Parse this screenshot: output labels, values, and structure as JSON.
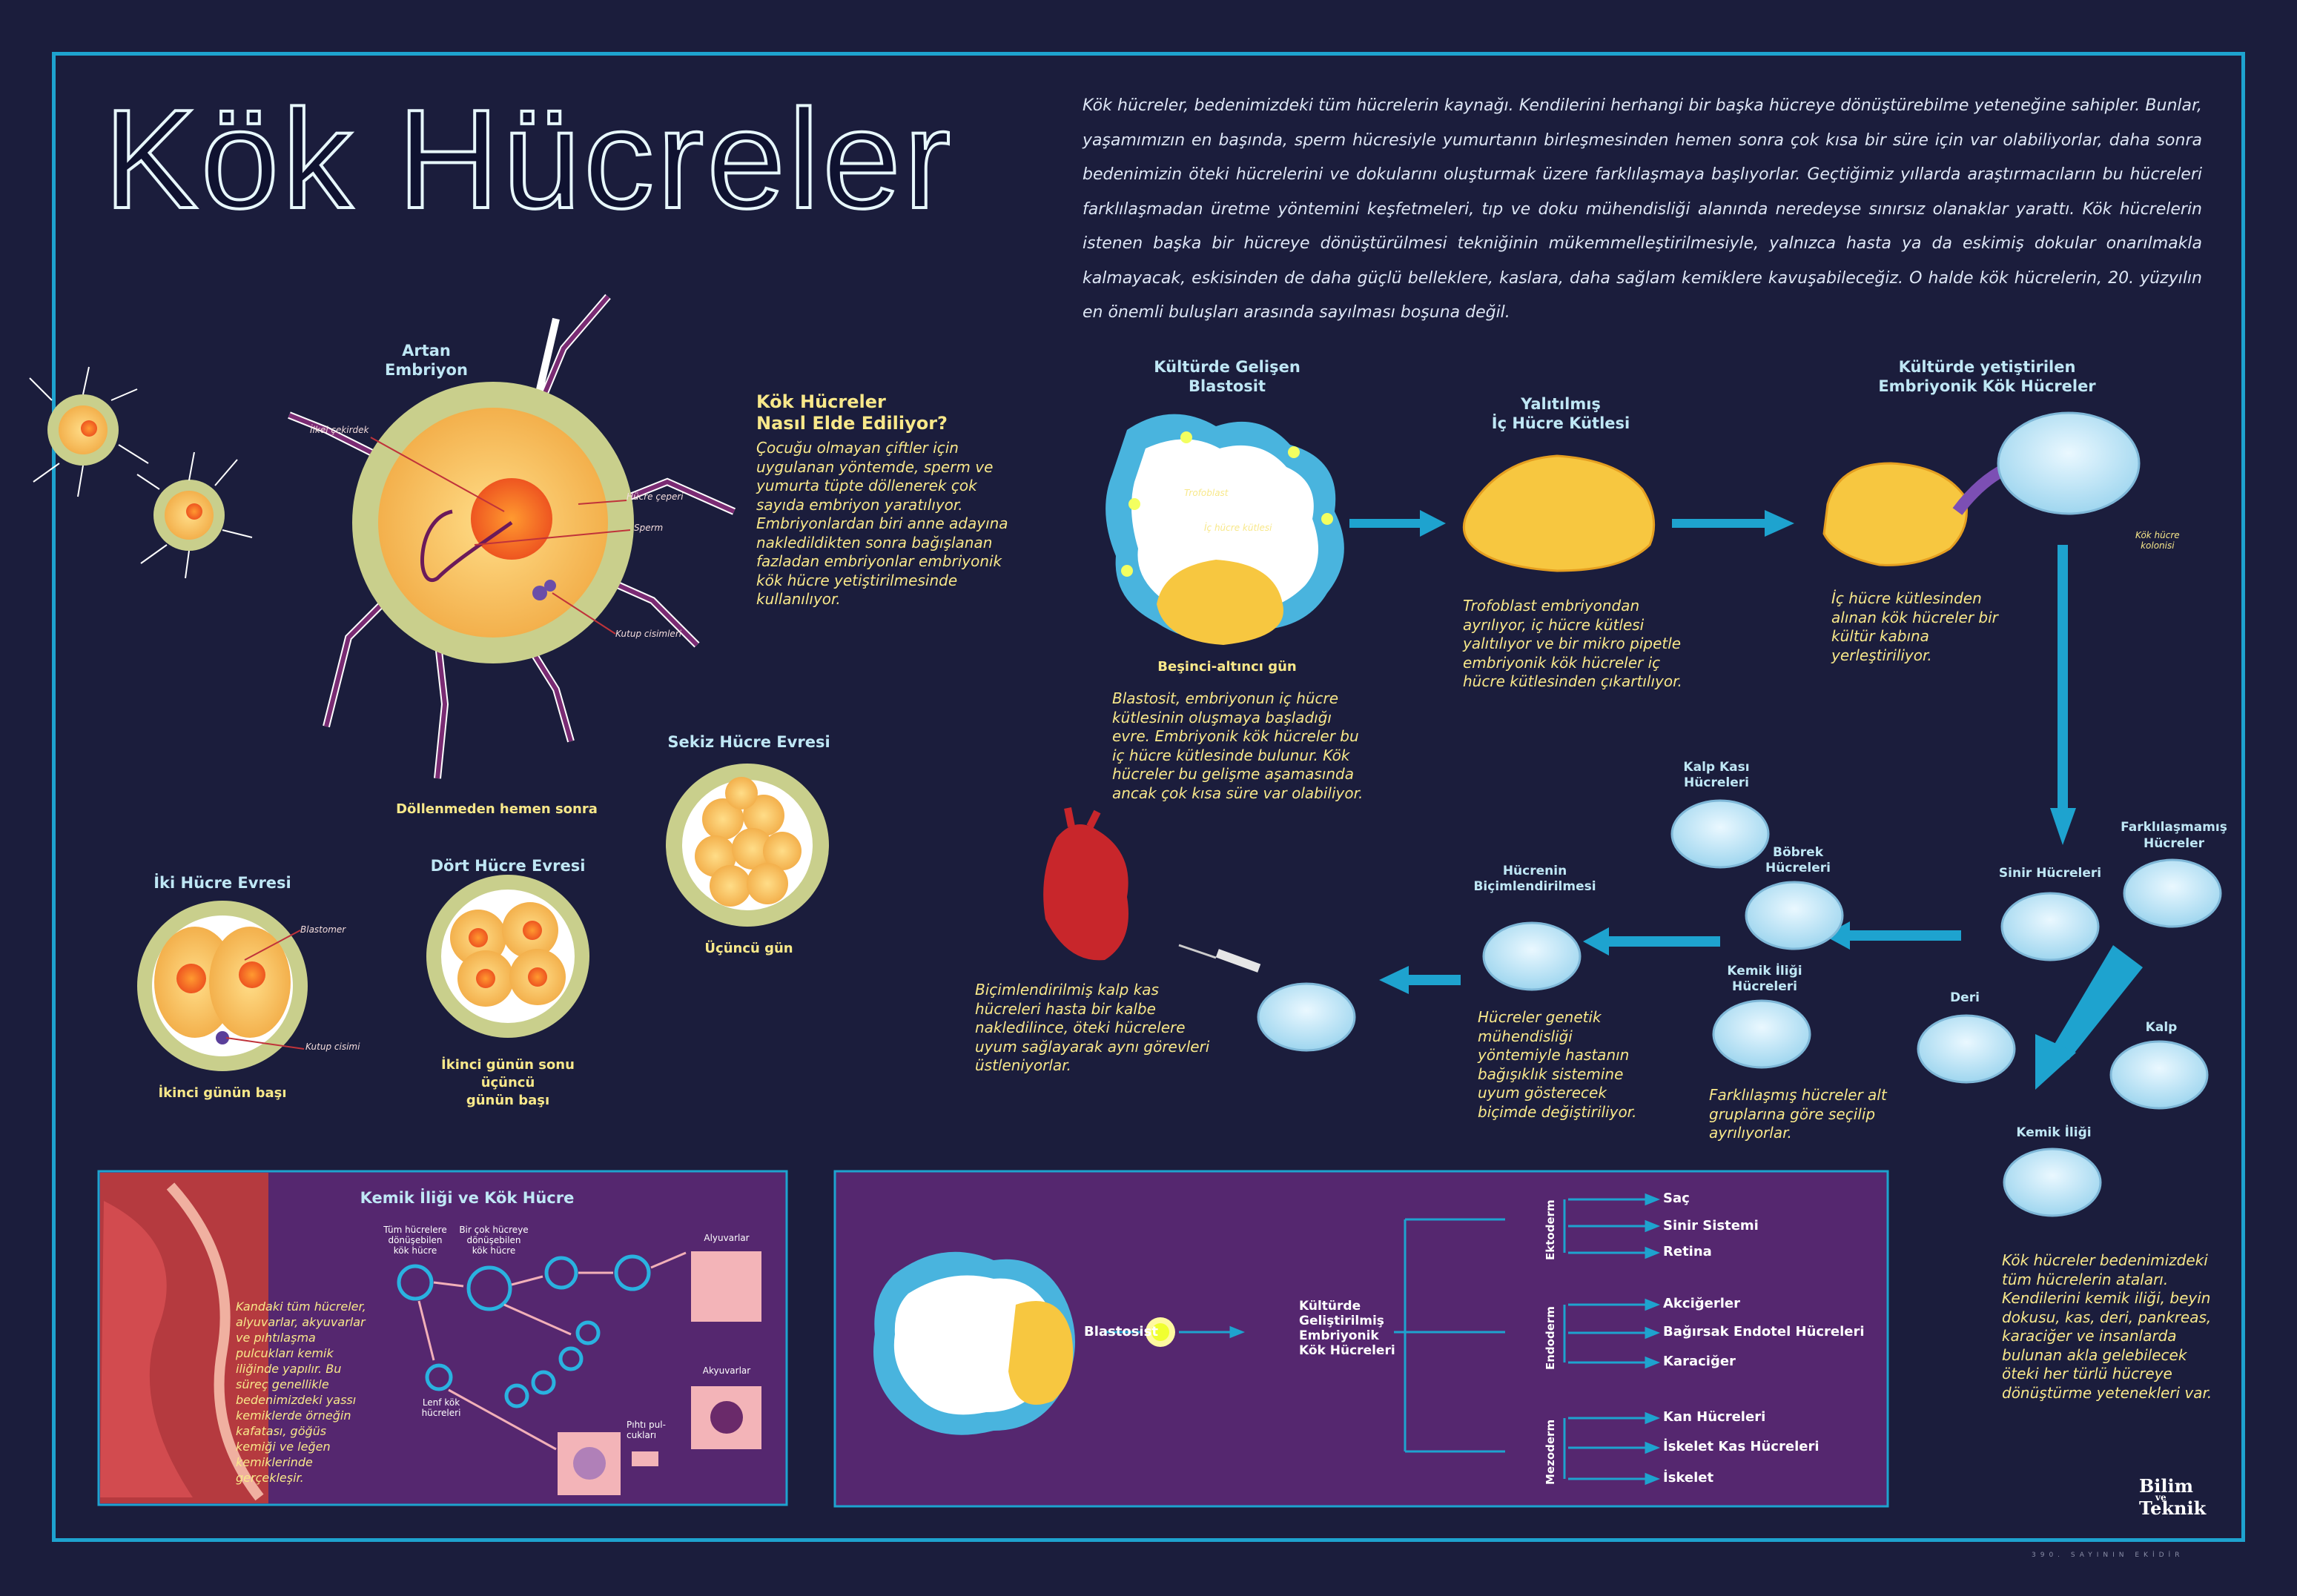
{
  "title": "Kök Hücreler",
  "intro": "Kök hücreler, bedenimizdeki tüm hücrelerin kaynağı. Kendilerini herhangi bir başka hücreye dönüştürebilme yeteneğine sahipler. Bunlar, yaşamımızın en başında, sperm hücresiyle yumurtanın birleşmesinden hemen sonra çok kısa bir süre için var olabiliyorlar, daha sonra bedenimizin öteki hücrelerini ve dokularını oluşturmak üzere farklılaşmaya başlıyorlar. Geçtiğimiz yıllarda araştırmacıların bu hücreleri farklılaşmadan üretme yöntemini keşfetmeleri, tıp ve doku mühendisliği alanında neredeyse sınırsız olanaklar yarattı. Kök hücrelerin istenen başka bir hücreye dönüştürülmesi tekniğinin mükemmelleştirilmesiyle, yalnızca hasta ya da eskimiş dokular onarılmakla kalmayacak, eskisinden de daha güçlü belleklere, kaslara, daha sağlam kemiklere kavuşabileceğiz. O halde kök hücrelerin, 20. yüzyılın en önemli buluşları arasında sayılması boşuna değil.",
  "embryo": {
    "title": "Artan\nEmbriyon",
    "labels": {
      "nucleus": "İlkel çekirdek",
      "wall": "Hücre çeperi",
      "sperm": "Sperm",
      "polar": "Kutup cisimleri"
    },
    "caption": "Döllenmeden hemen sonra"
  },
  "how": {
    "title": "Kök Hücreler\nNasıl Elde Ediliyor?",
    "text": "Çocuğu olmayan çiftler için uygulanan yöntemde, sperm ve yumurta tüpte döllenerek çok sayıda embriyon yaratılıyor. Embriyonlardan biri anne adayına nakledildikten sonra bağışlanan fazladan embriyonlar embriyonik kök hücre yetiştirilmesinde kullanılıyor."
  },
  "stages": {
    "two": {
      "title": "İki Hücre Evresi",
      "caption": "İkinci günün başı",
      "blastomer": "Blastomer",
      "polar": "Kutup cisimi"
    },
    "four": {
      "title": "Dört Hücre Evresi",
      "caption": "İkinci günün sonu üçüncü\ngünün başı"
    },
    "eight": {
      "title": "Sekiz Hücre Evresi",
      "caption": "Üçüncü gün"
    }
  },
  "flow": {
    "blast": {
      "title": "Kültürde Gelişen\nBlastosit",
      "tro": "Trofoblast",
      "inner": "İç hücre kütlesi",
      "caption": "Beşinci-altıncı gün",
      "text": "Blastosit, embriyonun iç hücre kütlesinin oluşmaya başladığı evre. Embriyonik kök hücreler bu iç hücre kütlesinde bulunur. Kök hücreler bu gelişme aşamasında ancak çok kısa süre var olabiliyor."
    },
    "isolated": {
      "title": "Yalıtılmış\nİç Hücre Kütlesi",
      "text": "Trofoblast embriyondan ayrılıyor, iç hücre kütlesi yalıtılıyor ve bir mikro pipetle embriyonik kök hücreler iç hücre kütlesinden çıkartılıyor."
    },
    "cultured": {
      "title": "Kültürde yetiştirilen\nEmbriyonik Kök Hücreler",
      "colony": "Kök hücre\nkolonisi",
      "text": "İç hücre kütlesinden alınan kök hücreler bir kültür kabına yerleştiriliyor."
    },
    "undiff": "Farklılaşmamış\nHücreler",
    "nerve": "Sinir Hücreleri",
    "skin": "Deri",
    "heart": "Kalp",
    "marrow": "Kemik İliği",
    "marrow_text": "Kök hücreler bedenimizdeki tüm hücrelerin ataları. Kendilerini kemik iliği, beyin dokusu, kas, deri, pankreas, karaciğer ve insanlarda bulunan akla gelebilecek öteki her türlü hücreye dönüştürme yetenekleri var.",
    "heart_muscle": "Kalp Kası\nHücreleri",
    "kidney": "Böbrek\nHücreleri",
    "marrow_cells": "Kemik İliği\nHücreleri",
    "diff_text": "Farklılaşmış hücreler alt gruplarına göre seçilip ayrılıyorlar.",
    "shaping": "Hücrenin\nBiçimlendirilmesi",
    "shaping_text": "Hücreler genetik mühendisliği yöntemiyle hastanın bağışıklık sistemine uyum gösterecek biçimde değiştiriliyor.",
    "transplant_text": "Biçimlendirilmiş kalp kas hücreleri hasta bir kalbe nakledilince, öteki hücrelere uyum sağlayarak aynı görevleri üstleniyorlar."
  },
  "bone": {
    "title": "Kemik İliği ve Kök Hücre",
    "text": "Kandaki tüm hücreler, alyuvarlar, akyuvarlar ve pıhtılaşma pulcukları kemik iliğinde yapılır. Bu süreç genellikle bedenimizdeki yassı kemiklerde örneğin kafatası, göğüs kemiği ve leğen kemiklerinde gerçekleşir.",
    "all": "Tüm hücrelere\ndönüşebilen\nkök hücre",
    "many": "Bir çok hücreye\ndönüşebilen\nkök hücre",
    "lenf": "Lenf kök\nhücreleri",
    "red": "Alyuvarlar",
    "white": "Akyuvarlar",
    "platelet": "Pıhtı pul-\ncukları"
  },
  "germ": {
    "blastosist": "Blastosist",
    "cultured": "Kültürde\nGeliştirilmiş\nEmbriyonik\nKök Hücreleri",
    "layers": [
      {
        "name": "Ektoderm",
        "items": [
          "Saç",
          "Sinir Sistemi",
          "Retina"
        ]
      },
      {
        "name": "Endoderm",
        "items": [
          "Akciğerler",
          "Bağırsak Endotel Hücreleri",
          "Karaciğer"
        ]
      },
      {
        "name": "Mezoderm",
        "items": [
          "Kan Hücreleri",
          "İskelet Kas Hücreleri",
          "İskelet"
        ]
      }
    ]
  },
  "brand": {
    "line1": "Bilim",
    "line2": "ve",
    "line3": "Teknik",
    "footer": "390. SAYININ EKİDİR"
  }
}
